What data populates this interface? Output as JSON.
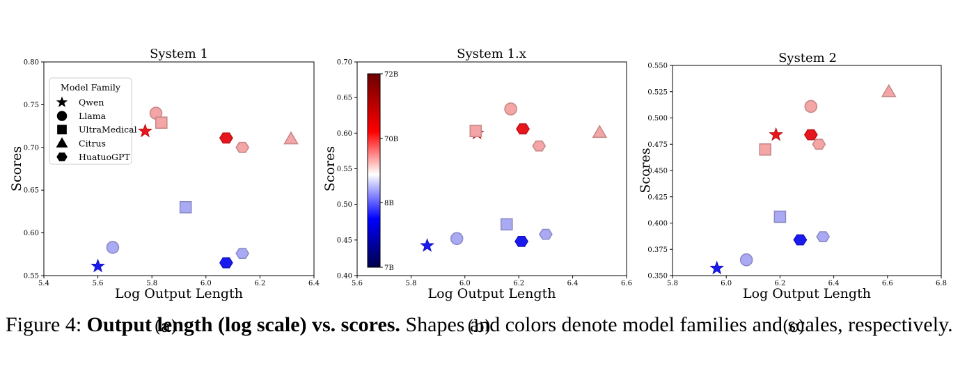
{
  "figure": {
    "caption_label": "Figure 4:",
    "caption_bold": "Output length (log scale) vs. scores.",
    "caption_rest": "Shapes and colors denote model families and scales, respectively."
  },
  "colorbar": {
    "tick_labels": [
      "72B",
      "70B",
      "8B",
      "7B"
    ],
    "colors": [
      "#6b0000",
      "#ff0000",
      "#ffffff",
      "#0000ff",
      "#00004a"
    ]
  },
  "legend": {
    "title": "Model Family",
    "items": [
      {
        "label": "Qwen",
        "shape": "star"
      },
      {
        "label": "Llama",
        "shape": "circle"
      },
      {
        "label": "UltraMedical",
        "shape": "square"
      },
      {
        "label": "Citrus",
        "shape": "triangle"
      },
      {
        "label": "HuatuoGPT",
        "shape": "hexagon"
      }
    ]
  },
  "chart_data": [
    {
      "type": "scatter",
      "panel_label": "(a)",
      "title": "System 1",
      "xlabel": "Log Output Length",
      "ylabel": "Scores",
      "xlim": [
        5.4,
        6.4
      ],
      "ylim": [
        0.55,
        0.8
      ],
      "xticks": [
        "5.4",
        "5.6",
        "5.8",
        "6.0",
        "6.2",
        "6.4"
      ],
      "yticks": [
        "0.55",
        "0.60",
        "0.65",
        "0.70",
        "0.75",
        "0.80"
      ],
      "points": [
        {
          "family": "Qwen",
          "x": 5.6,
          "y": 0.561,
          "color": "#1a1aee"
        },
        {
          "family": "Qwen",
          "x": 5.775,
          "y": 0.719,
          "color": "#e8161c"
        },
        {
          "family": "Llama",
          "x": 5.655,
          "y": 0.583,
          "color": "#aaaaf4"
        },
        {
          "family": "Llama",
          "x": 5.815,
          "y": 0.74,
          "color": "#f4a6a6"
        },
        {
          "family": "UltraMedical",
          "x": 5.835,
          "y": 0.729,
          "color": "#f4a6a6"
        },
        {
          "family": "UltraMedical",
          "x": 5.925,
          "y": 0.63,
          "color": "#aaaaf4"
        },
        {
          "family": "Citrus",
          "x": 6.315,
          "y": 0.71,
          "color": "#f4a6a6"
        },
        {
          "family": "HuatuoGPT",
          "x": 6.075,
          "y": 0.565,
          "color": "#1a1aee"
        },
        {
          "family": "HuatuoGPT",
          "x": 6.075,
          "y": 0.711,
          "color": "#e8161c"
        },
        {
          "family": "HuatuoGPT",
          "x": 6.135,
          "y": 0.576,
          "color": "#aaaaf4"
        },
        {
          "family": "HuatuoGPT",
          "x": 6.135,
          "y": 0.7,
          "color": "#f4a6a6"
        }
      ]
    },
    {
      "type": "scatter",
      "panel_label": "(b)",
      "title": "System 1.x",
      "xlabel": "Log Output Length",
      "ylabel": "Scores",
      "xlim": [
        5.6,
        6.6
      ],
      "ylim": [
        0.4,
        0.7
      ],
      "xticks": [
        "5.6",
        "5.8",
        "6.0",
        "6.2",
        "6.4",
        "6.6"
      ],
      "yticks": [
        "0.40",
        "0.45",
        "0.50",
        "0.55",
        "0.60",
        "0.65",
        "0.70"
      ],
      "points": [
        {
          "family": "Qwen",
          "x": 5.86,
          "y": 0.442,
          "color": "#1a1aee"
        },
        {
          "family": "Qwen",
          "x": 6.045,
          "y": 0.6,
          "color": "#e8161c"
        },
        {
          "family": "Llama",
          "x": 5.97,
          "y": 0.452,
          "color": "#aaaaf4"
        },
        {
          "family": "Llama",
          "x": 6.17,
          "y": 0.634,
          "color": "#f4a6a6"
        },
        {
          "family": "UltraMedical",
          "x": 6.04,
          "y": 0.603,
          "color": "#f4a6a6"
        },
        {
          "family": "UltraMedical",
          "x": 6.155,
          "y": 0.472,
          "color": "#aaaaf4"
        },
        {
          "family": "Citrus",
          "x": 6.5,
          "y": 0.601,
          "color": "#f4a6a6"
        },
        {
          "family": "HuatuoGPT",
          "x": 6.21,
          "y": 0.448,
          "color": "#1a1aee"
        },
        {
          "family": "HuatuoGPT",
          "x": 6.215,
          "y": 0.606,
          "color": "#e8161c"
        },
        {
          "family": "HuatuoGPT",
          "x": 6.3,
          "y": 0.458,
          "color": "#aaaaf4"
        },
        {
          "family": "HuatuoGPT",
          "x": 6.275,
          "y": 0.582,
          "color": "#f4a6a6"
        }
      ]
    },
    {
      "type": "scatter",
      "panel_label": "(c)",
      "title": "System 2",
      "xlabel": "Log Output Length",
      "ylabel": "Scores",
      "xlim": [
        5.8,
        6.8
      ],
      "ylim": [
        0.35,
        0.55
      ],
      "xticks": [
        "5.8",
        "6.0",
        "6.2",
        "6.4",
        "6.6",
        "6.8"
      ],
      "yticks": [
        "0.350",
        "0.375",
        "0.400",
        "0.425",
        "0.450",
        "0.475",
        "0.500",
        "0.525",
        "0.550"
      ],
      "points": [
        {
          "family": "Qwen",
          "x": 5.965,
          "y": 0.357,
          "color": "#1a1aee"
        },
        {
          "family": "Qwen",
          "x": 6.185,
          "y": 0.484,
          "color": "#e8161c"
        },
        {
          "family": "Llama",
          "x": 6.075,
          "y": 0.365,
          "color": "#aaaaf4"
        },
        {
          "family": "Llama",
          "x": 6.315,
          "y": 0.511,
          "color": "#f4a6a6"
        },
        {
          "family": "UltraMedical",
          "x": 6.145,
          "y": 0.47,
          "color": "#f4a6a6"
        },
        {
          "family": "UltraMedical",
          "x": 6.2,
          "y": 0.406,
          "color": "#aaaaf4"
        },
        {
          "family": "Citrus",
          "x": 6.605,
          "y": 0.525,
          "color": "#f4a6a6"
        },
        {
          "family": "HuatuoGPT",
          "x": 6.275,
          "y": 0.384,
          "color": "#1a1aee"
        },
        {
          "family": "HuatuoGPT",
          "x": 6.315,
          "y": 0.484,
          "color": "#e8161c"
        },
        {
          "family": "HuatuoGPT",
          "x": 6.36,
          "y": 0.387,
          "color": "#aaaaf4"
        },
        {
          "family": "HuatuoGPT",
          "x": 6.345,
          "y": 0.475,
          "color": "#f4a6a6"
        }
      ]
    }
  ]
}
